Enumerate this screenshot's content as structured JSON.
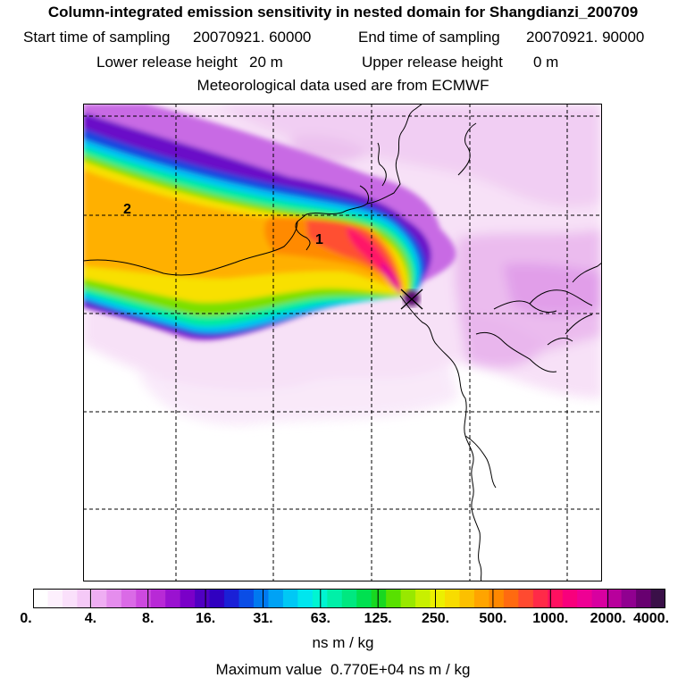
{
  "header": {
    "title": "Column-integrated emission sensitivity in nested domain for Shangdianzi_200709",
    "start_label": "Start time of sampling",
    "start_value": "20070921. 60000",
    "end_label": "End time of sampling",
    "end_value": "20070921. 90000",
    "lower_label": "Lower release height",
    "lower_value": "20 m",
    "upper_label": "Upper release height",
    "upper_value": "0 m",
    "met_line": "Meteorological data used are from ECMWF"
  },
  "map": {
    "labels": [
      {
        "id": "label-1",
        "text": "1"
      },
      {
        "id": "label-2",
        "text": "2"
      }
    ],
    "release_marker": "x-marker-icon"
  },
  "colorbar": {
    "tick_labels": [
      "0.",
      "4.",
      "8.",
      "16.",
      "31.",
      "63.",
      "125.",
      "250.",
      "500.",
      "1000.",
      "2000.",
      "4000."
    ],
    "colors": [
      "#ffffff",
      "#fdf0fd",
      "#fae0fb",
      "#f5c9f7",
      "#efaef3",
      "#e58ded",
      "#da6ae6",
      "#cd49df",
      "#b82ad6",
      "#9a12d0",
      "#7a00c8",
      "#5000c2",
      "#3000c0",
      "#1a20d6",
      "#0a4de6",
      "#0079f0",
      "#00a2f5",
      "#00c8f5",
      "#00e6ee",
      "#00f5d2",
      "#00f0a8",
      "#00e880",
      "#00e050",
      "#18d820",
      "#58e000",
      "#98e800",
      "#c8f000",
      "#ecf000",
      "#f8dc00",
      "#fcc000",
      "#ffa400",
      "#ff8800",
      "#ff6a10",
      "#ff4a30",
      "#ff2a48",
      "#ff1060",
      "#f8007c",
      "#ee0094",
      "#d800a0",
      "#b8009c",
      "#900090",
      "#680070",
      "#3a1048"
    ]
  },
  "units": "ns m / kg",
  "max_label": "Maximum value",
  "max_value": "0.770E+04 ns m / kg"
}
